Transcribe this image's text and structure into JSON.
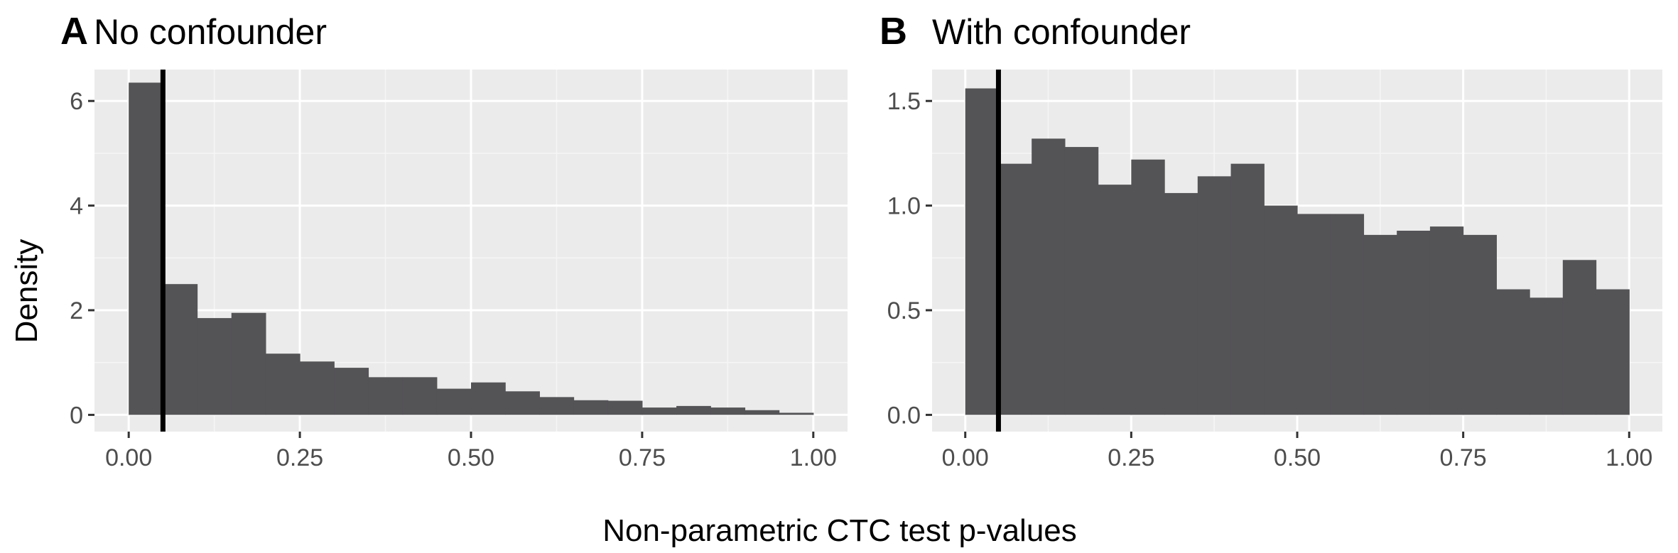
{
  "figure": {
    "xlabel": "Non-parametric CTC test p-values",
    "ylabel": "Density"
  },
  "chart_data": [
    {
      "type": "bar",
      "tag": "A",
      "title": "No confounder",
      "xlabel": "Non-parametric CTC test p-values",
      "ylabel": "Density",
      "xlim": [
        -0.05,
        1.05
      ],
      "ylim": [
        -0.32,
        6.6
      ],
      "xticks": [
        0,
        0.25,
        0.5,
        0.75,
        1
      ],
      "xtick_labels": [
        "0.00",
        "0.25",
        "0.50",
        "0.75",
        "1.00"
      ],
      "yticks": [
        0,
        2,
        4,
        6
      ],
      "ytick_labels": [
        "0",
        "2",
        "4",
        "6"
      ],
      "bin_width": 0.05,
      "bins_start": [
        0,
        0.05,
        0.1,
        0.15,
        0.2,
        0.25,
        0.3,
        0.35,
        0.4,
        0.45,
        0.5,
        0.55,
        0.6,
        0.65,
        0.7,
        0.75,
        0.8,
        0.85,
        0.9,
        0.95
      ],
      "values": [
        6.35,
        2.5,
        1.85,
        1.95,
        1.17,
        1.02,
        0.9,
        0.72,
        0.72,
        0.5,
        0.62,
        0.45,
        0.34,
        0.28,
        0.27,
        0.14,
        0.17,
        0.14,
        0.09,
        0.04
      ],
      "vline": 0.05,
      "grid": true
    },
    {
      "type": "bar",
      "tag": "B",
      "title": "With confounder",
      "xlabel": "Non-parametric CTC test p-values",
      "ylabel": "Density",
      "xlim": [
        -0.05,
        1.05
      ],
      "ylim": [
        -0.08,
        1.65
      ],
      "xticks": [
        0,
        0.25,
        0.5,
        0.75,
        1
      ],
      "xtick_labels": [
        "0.00",
        "0.25",
        "0.50",
        "0.75",
        "1.00"
      ],
      "yticks": [
        0,
        0.5,
        1,
        1.5
      ],
      "ytick_labels": [
        "0.0",
        "0.5",
        "1.0",
        "1.5"
      ],
      "bin_width": 0.05,
      "bins_start": [
        0,
        0.05,
        0.1,
        0.15,
        0.2,
        0.25,
        0.3,
        0.35,
        0.4,
        0.45,
        0.5,
        0.55,
        0.6,
        0.65,
        0.7,
        0.75,
        0.8,
        0.85,
        0.9,
        0.95
      ],
      "values": [
        1.56,
        1.2,
        1.32,
        1.28,
        1.1,
        1.22,
        1.06,
        1.14,
        1.2,
        1.0,
        0.96,
        0.96,
        0.86,
        0.88,
        0.9,
        0.86,
        0.6,
        0.56,
        0.74,
        0.6
      ],
      "vline": 0.05,
      "grid": true
    }
  ]
}
